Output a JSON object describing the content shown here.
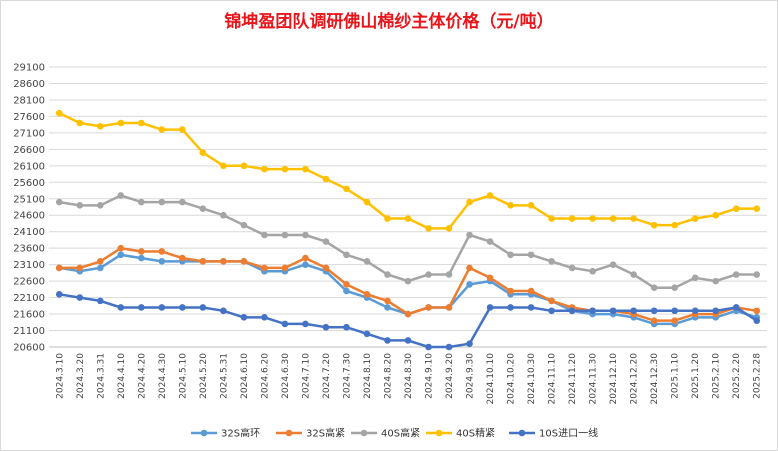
{
  "chart_data": {
    "type": "line",
    "title": "锦坤盈团队调研佛山棉纱主体价格（元/吨）",
    "ylim": [
      20600,
      29100
    ],
    "yticks": [
      20600,
      21100,
      21600,
      22100,
      22600,
      23100,
      23600,
      24100,
      24600,
      25100,
      25600,
      26100,
      26600,
      27100,
      27600,
      28100,
      28600,
      29100
    ],
    "grid": true,
    "legend_position": "bottom",
    "x": [
      "2024.3.10",
      "2024.3.20",
      "2024.3.31",
      "2024.4.10",
      "2024.4.20",
      "2024.4.30",
      "2024.5.10",
      "2024.5.20",
      "2024.5.31",
      "2024.6.10",
      "2024.6.20",
      "2024.6.30",
      "2024.7.10",
      "2024.7.20",
      "2024.7.30",
      "2024.8.10",
      "2024.8.20",
      "2024.8.30",
      "2024.9.10",
      "2024.9.20",
      "2024.9.30",
      "2024.10.10",
      "2024.10.20",
      "2024.10.30",
      "2024.11.10",
      "2024.11.20",
      "2024.11.30",
      "2024.12.10",
      "2024.12.20",
      "2024.12.30",
      "2025.1.10",
      "2025.1.20",
      "2025.2.10",
      "2025.2.20",
      "2025.2.28"
    ],
    "series": [
      {
        "name": "32S高环",
        "color": "#5b9bd5",
        "values": [
          23000,
          22900,
          23000,
          23400,
          23300,
          23200,
          23200,
          23200,
          23200,
          23200,
          22900,
          22900,
          23100,
          22900,
          22300,
          22100,
          21800,
          21600,
          21800,
          21800,
          22500,
          22600,
          22200,
          22200,
          22000,
          21700,
          21600,
          21600,
          21500,
          21300,
          21300,
          21500,
          21500,
          21700,
          21500
        ]
      },
      {
        "name": "32S高紧",
        "color": "#ed7d31",
        "values": [
          23000,
          23000,
          23200,
          23600,
          23500,
          23500,
          23300,
          23200,
          23200,
          23200,
          23000,
          23000,
          23300,
          23000,
          22500,
          22200,
          22000,
          21600,
          21800,
          21800,
          23000,
          22700,
          22300,
          22300,
          22000,
          21800,
          21700,
          21700,
          21600,
          21400,
          21400,
          21600,
          21600,
          21800,
          21700
        ]
      },
      {
        "name": "40S高紧",
        "color": "#a5a5a5",
        "values": [
          25000,
          24900,
          24900,
          25200,
          25000,
          25000,
          25000,
          24800,
          24600,
          24300,
          24000,
          24000,
          24000,
          23800,
          23400,
          23200,
          22800,
          22600,
          22800,
          22800,
          24000,
          23800,
          23400,
          23400,
          23200,
          23000,
          22900,
          23100,
          22800,
          22400,
          22400,
          22700,
          22600,
          22800,
          22800
        ]
      },
      {
        "name": "40S精紧",
        "color": "#ffc000",
        "values": [
          27700,
          27400,
          27300,
          27400,
          27400,
          27200,
          27200,
          26500,
          26100,
          26100,
          26000,
          26000,
          26000,
          25700,
          25400,
          25000,
          24500,
          24500,
          24200,
          24200,
          25000,
          25200,
          24900,
          24900,
          24500,
          24500,
          24500,
          24500,
          24500,
          24300,
          24300,
          24500,
          24600,
          24800,
          24800
        ]
      },
      {
        "name": "10S进口一线",
        "color": "#4472c4",
        "values": [
          22200,
          22100,
          22000,
          21800,
          21800,
          21800,
          21800,
          21800,
          21700,
          21500,
          21500,
          21300,
          21300,
          21200,
          21200,
          21000,
          20800,
          20800,
          20600,
          20600,
          20700,
          21800,
          21800,
          21800,
          21700,
          21700,
          21700,
          21700,
          21700,
          21700,
          21700,
          21700,
          21700,
          21800,
          21400
        ]
      }
    ]
  }
}
